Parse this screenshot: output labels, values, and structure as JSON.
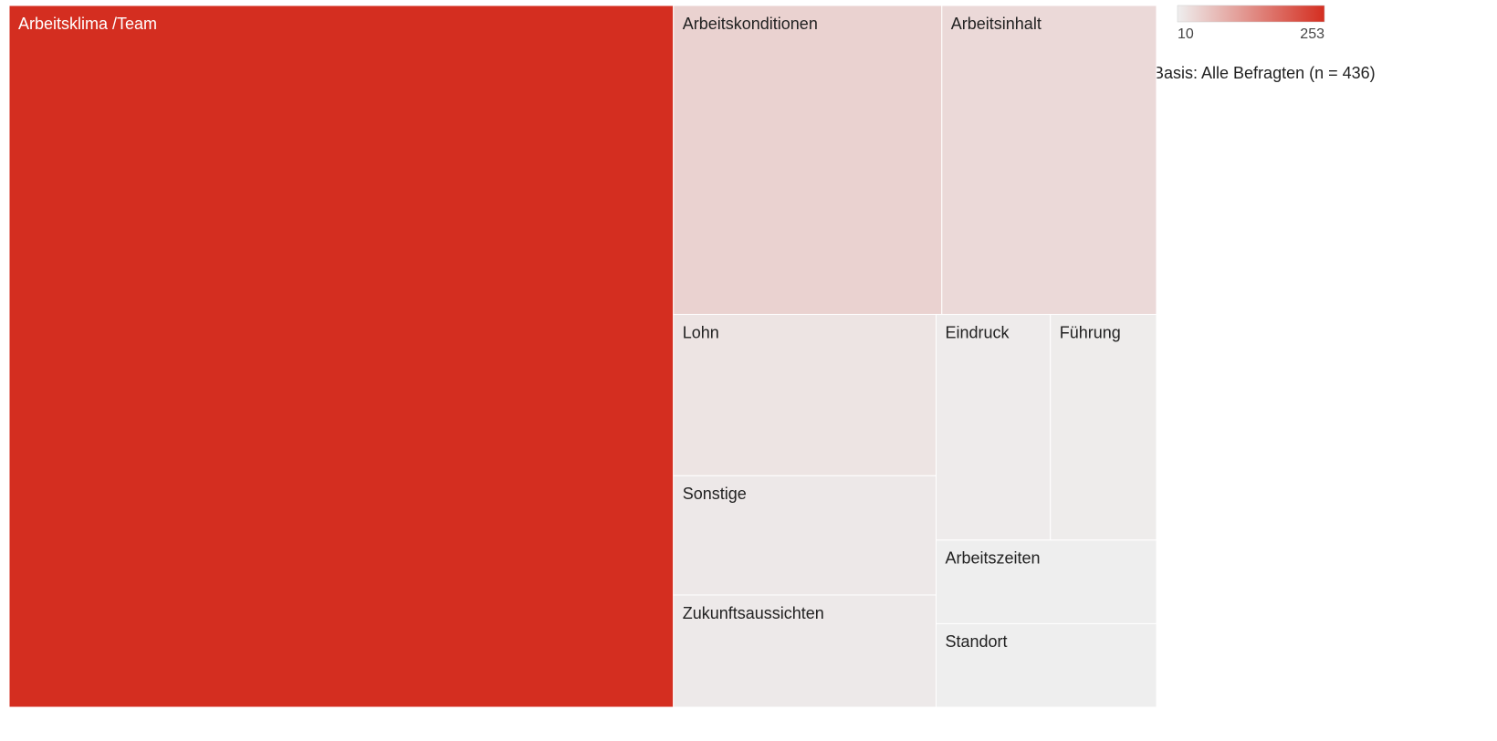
{
  "chart_data": {
    "type": "treemap",
    "categories": [
      "Arbeitsklima /Team",
      "Arbeitskonditionen",
      "Arbeitsinhalt",
      "Lohn",
      "Sonstige",
      "Zukunftsaussichten",
      "Eindruck",
      "Führung",
      "Arbeitszeiten",
      "Standort"
    ],
    "values": [
      253,
      45,
      36,
      23,
      17,
      16,
      14,
      13,
      10,
      10
    ],
    "colorscale": [
      "#eeeeee",
      "#d42e20"
    ],
    "colorbar_ticks": [
      10,
      253
    ],
    "annotation": "Basis: Alle Befragten (n = 436)"
  }
}
